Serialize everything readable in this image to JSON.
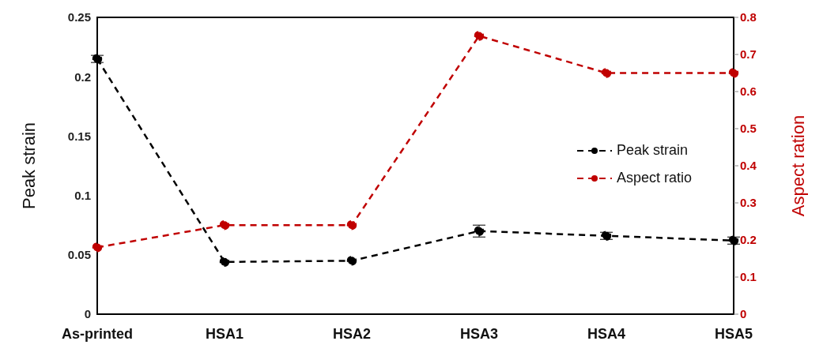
{
  "chart_data": {
    "type": "line",
    "ylabel": "Peak strain",
    "y2label": "Aspect ration",
    "categories": [
      "As-printed",
      "HSA1",
      "HSA2",
      "HSA3",
      "HSA4",
      "HSA5"
    ],
    "series": [
      {
        "name": "Peak strain",
        "color": "#000000",
        "values": [
          0.215,
          0.044,
          0.045,
          0.07,
          0.066,
          0.062
        ],
        "errors": [
          0.003,
          null,
          null,
          0.005,
          0.003,
          0.003
        ]
      },
      {
        "name": "Aspect ratio",
        "color": "#c00000",
        "values": [
          0.18,
          0.24,
          0.24,
          0.75,
          0.65,
          0.65
        ],
        "axis": "y2"
      }
    ],
    "ylim": [
      0,
      0.25
    ],
    "yticks": [
      0,
      0.05,
      0.1,
      0.15,
      0.2,
      0.25
    ],
    "y2lim": [
      0,
      0.8
    ],
    "y2ticks": [
      0,
      0.1,
      0.2,
      0.3,
      0.4,
      0.5,
      0.6,
      0.7,
      0.8
    ],
    "grid": false,
    "legend": "right",
    "marker": "circle",
    "line_style": "dashed"
  }
}
